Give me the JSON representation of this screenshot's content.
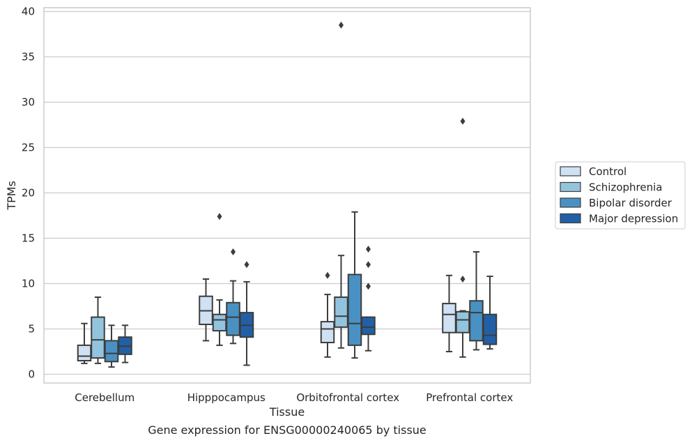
{
  "chart_data": {
    "type": "boxplot",
    "caption": "Gene expression for ENSG00000240065 by tissue",
    "xlabel": "Tissue",
    "ylabel": "TPMs",
    "ylim": [
      -1,
      40.5
    ],
    "yticks": [
      0,
      5,
      10,
      15,
      20,
      25,
      30,
      35,
      40
    ],
    "grid": "horizontal",
    "legend_position": "right",
    "categories": [
      "Cerebellum",
      "Hipppocampus",
      "Orbitofrontal cortex",
      "Prefrontal cortex"
    ],
    "series": [
      {
        "name": "Control",
        "color": "#cfe1f2",
        "boxes": [
          {
            "whislo": 1.2,
            "q1": 1.5,
            "med": 2.0,
            "q3": 3.2,
            "whishi": 5.6,
            "fliers": []
          },
          {
            "whislo": 3.7,
            "q1": 5.5,
            "med": 7.0,
            "q3": 8.6,
            "whishi": 10.5,
            "fliers": []
          },
          {
            "whislo": 1.9,
            "q1": 3.5,
            "med": 5.0,
            "q3": 5.8,
            "whishi": 8.8,
            "fliers": [
              10.9
            ]
          },
          {
            "whislo": 2.5,
            "q1": 4.6,
            "med": 6.6,
            "q3": 7.8,
            "whishi": 10.9,
            "fliers": []
          }
        ]
      },
      {
        "name": "Schizophrenia",
        "color": "#93c4de",
        "boxes": [
          {
            "whislo": 1.2,
            "q1": 1.8,
            "med": 3.8,
            "q3": 6.3,
            "whishi": 8.5,
            "fliers": []
          },
          {
            "whislo": 3.2,
            "q1": 4.8,
            "med": 6.0,
            "q3": 6.6,
            "whishi": 8.2,
            "fliers": [
              17.4
            ]
          },
          {
            "whislo": 2.9,
            "q1": 5.2,
            "med": 6.4,
            "q3": 8.5,
            "whishi": 13.1,
            "fliers": [
              38.5
            ]
          },
          {
            "whislo": 1.9,
            "q1": 4.6,
            "med": 6.0,
            "q3": 6.9,
            "whishi": 7.0,
            "fliers": [
              10.5,
              27.9
            ]
          }
        ]
      },
      {
        "name": "Bipolar disorder",
        "color": "#4a91c3",
        "boxes": [
          {
            "whislo": 0.8,
            "q1": 1.4,
            "med": 2.3,
            "q3": 3.7,
            "whishi": 5.4,
            "fliers": []
          },
          {
            "whislo": 3.4,
            "q1": 4.3,
            "med": 6.3,
            "q3": 7.9,
            "whishi": 10.3,
            "fliers": [
              13.5
            ]
          },
          {
            "whislo": 1.8,
            "q1": 3.2,
            "med": 5.6,
            "q3": 11.0,
            "whishi": 17.9,
            "fliers": []
          },
          {
            "whislo": 2.7,
            "q1": 3.7,
            "med": 6.8,
            "q3": 8.1,
            "whishi": 13.5,
            "fliers": []
          }
        ]
      },
      {
        "name": "Major depression",
        "color": "#2260a6",
        "boxes": [
          {
            "whislo": 1.3,
            "q1": 2.2,
            "med": 3.1,
            "q3": 4.1,
            "whishi": 5.4,
            "fliers": []
          },
          {
            "whislo": 1.0,
            "q1": 4.1,
            "med": 5.4,
            "q3": 6.8,
            "whishi": 10.2,
            "fliers": [
              12.1
            ]
          },
          {
            "whislo": 2.6,
            "q1": 4.4,
            "med": 5.2,
            "q3": 6.3,
            "whishi": 6.3,
            "fliers": [
              9.7,
              12.1,
              13.8
            ]
          },
          {
            "whislo": 2.8,
            "q1": 3.3,
            "med": 4.3,
            "q3": 6.6,
            "whishi": 10.8,
            "fliers": []
          }
        ]
      }
    ]
  }
}
